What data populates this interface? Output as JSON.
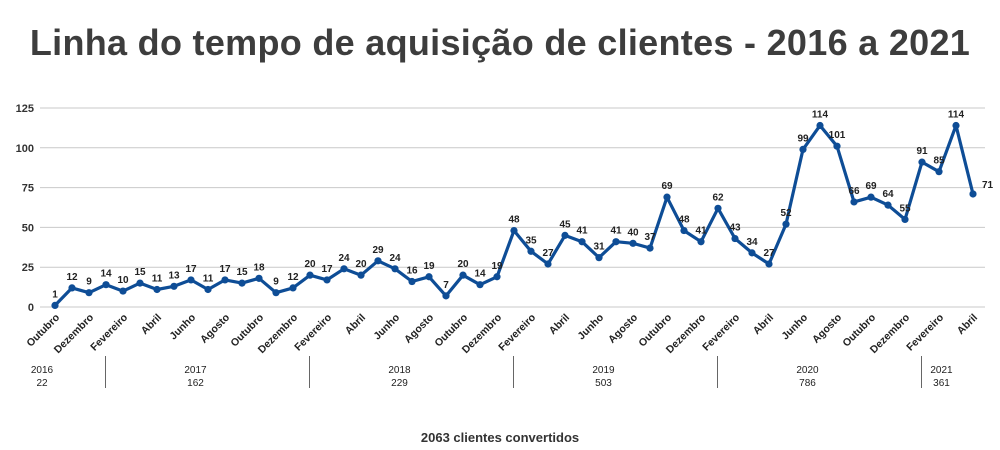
{
  "title": "Linha do tempo de aquisição de clientes - 2016 a 2021",
  "total_label": "2063 clientes convertidos",
  "colors": {
    "line": "#0e4d96",
    "grid": "#c9c9c9",
    "text": "#333333"
  },
  "chart_data": {
    "type": "line",
    "title": "Linha do tempo de aquisição de clientes - 2016 a 2021",
    "ylim": [
      0,
      125
    ],
    "yticks": [
      0,
      25,
      50,
      75,
      100,
      125
    ],
    "grid": true,
    "values": [
      1,
      12,
      9,
      14,
      10,
      15,
      11,
      13,
      17,
      11,
      17,
      15,
      18,
      9,
      12,
      20,
      17,
      24,
      20,
      29,
      24,
      16,
      19,
      7,
      20,
      14,
      19,
      48,
      35,
      27,
      45,
      41,
      31,
      41,
      40,
      37,
      69,
      48,
      41,
      62,
      43,
      34,
      27,
      52,
      99,
      114,
      101,
      66,
      69,
      64,
      55,
      91,
      85,
      114,
      71
    ],
    "tick_labels": [
      {
        "index": 0,
        "label": "Outubro"
      },
      {
        "index": 2,
        "label": "Dezembro"
      },
      {
        "index": 4,
        "label": "Fevereiro"
      },
      {
        "index": 6,
        "label": "Abril"
      },
      {
        "index": 8,
        "label": "Junho"
      },
      {
        "index": 10,
        "label": "Agosto"
      },
      {
        "index": 12,
        "label": "Outubro"
      },
      {
        "index": 14,
        "label": "Dezembro"
      },
      {
        "index": 16,
        "label": "Fevereiro"
      },
      {
        "index": 18,
        "label": "Abril"
      },
      {
        "index": 20,
        "label": "Junho"
      },
      {
        "index": 22,
        "label": "Agosto"
      },
      {
        "index": 24,
        "label": "Outubro"
      },
      {
        "index": 26,
        "label": "Dezembro"
      },
      {
        "index": 28,
        "label": "Fevereiro"
      },
      {
        "index": 30,
        "label": "Abril"
      },
      {
        "index": 32,
        "label": "Junho"
      },
      {
        "index": 34,
        "label": "Agosto"
      },
      {
        "index": 36,
        "label": "Outubro"
      },
      {
        "index": 38,
        "label": "Dezembro"
      },
      {
        "index": 40,
        "label": "Fevereiro"
      },
      {
        "index": 42,
        "label": "Abril"
      },
      {
        "index": 44,
        "label": "Junho"
      },
      {
        "index": 46,
        "label": "Agosto"
      },
      {
        "index": 48,
        "label": "Outubro"
      },
      {
        "index": 50,
        "label": "Dezembro"
      },
      {
        "index": 52,
        "label": "Fevereiro"
      },
      {
        "index": 54,
        "label": "Abril"
      }
    ],
    "years": [
      {
        "year": "2016",
        "total": "22",
        "start": 0,
        "end": 2
      },
      {
        "year": "2017",
        "total": "162",
        "start": 3,
        "end": 14
      },
      {
        "year": "2018",
        "total": "229",
        "start": 15,
        "end": 26
      },
      {
        "year": "2019",
        "total": "503",
        "start": 27,
        "end": 38
      },
      {
        "year": "2020",
        "total": "786",
        "start": 39,
        "end": 50
      },
      {
        "year": "2021",
        "total": "361",
        "start": 51,
        "end": 54
      }
    ]
  }
}
